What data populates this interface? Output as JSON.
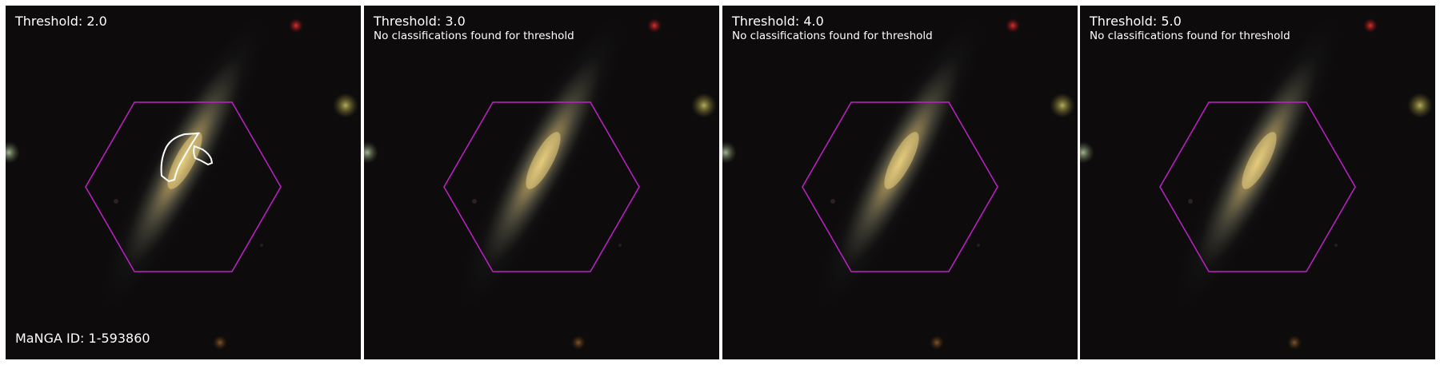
{
  "panels": [
    {
      "threshold_label": "Threshold: 2.0",
      "note": "",
      "has_contours": true
    },
    {
      "threshold_label": "Threshold: 3.0",
      "note": "No classifications found for threshold",
      "has_contours": false
    },
    {
      "threshold_label": "Threshold: 4.0",
      "note": "No classifications found for threshold",
      "has_contours": false
    },
    {
      "threshold_label": "Threshold: 5.0",
      "note": "No classifications found for threshold",
      "has_contours": false
    }
  ],
  "manga_id_label": "MaNGA ID: 1-593860",
  "colors": {
    "hexagon": "#c020c8",
    "contour": "#ffffff",
    "background": "#0d0b0c",
    "galaxy_core": "#d8c070"
  }
}
